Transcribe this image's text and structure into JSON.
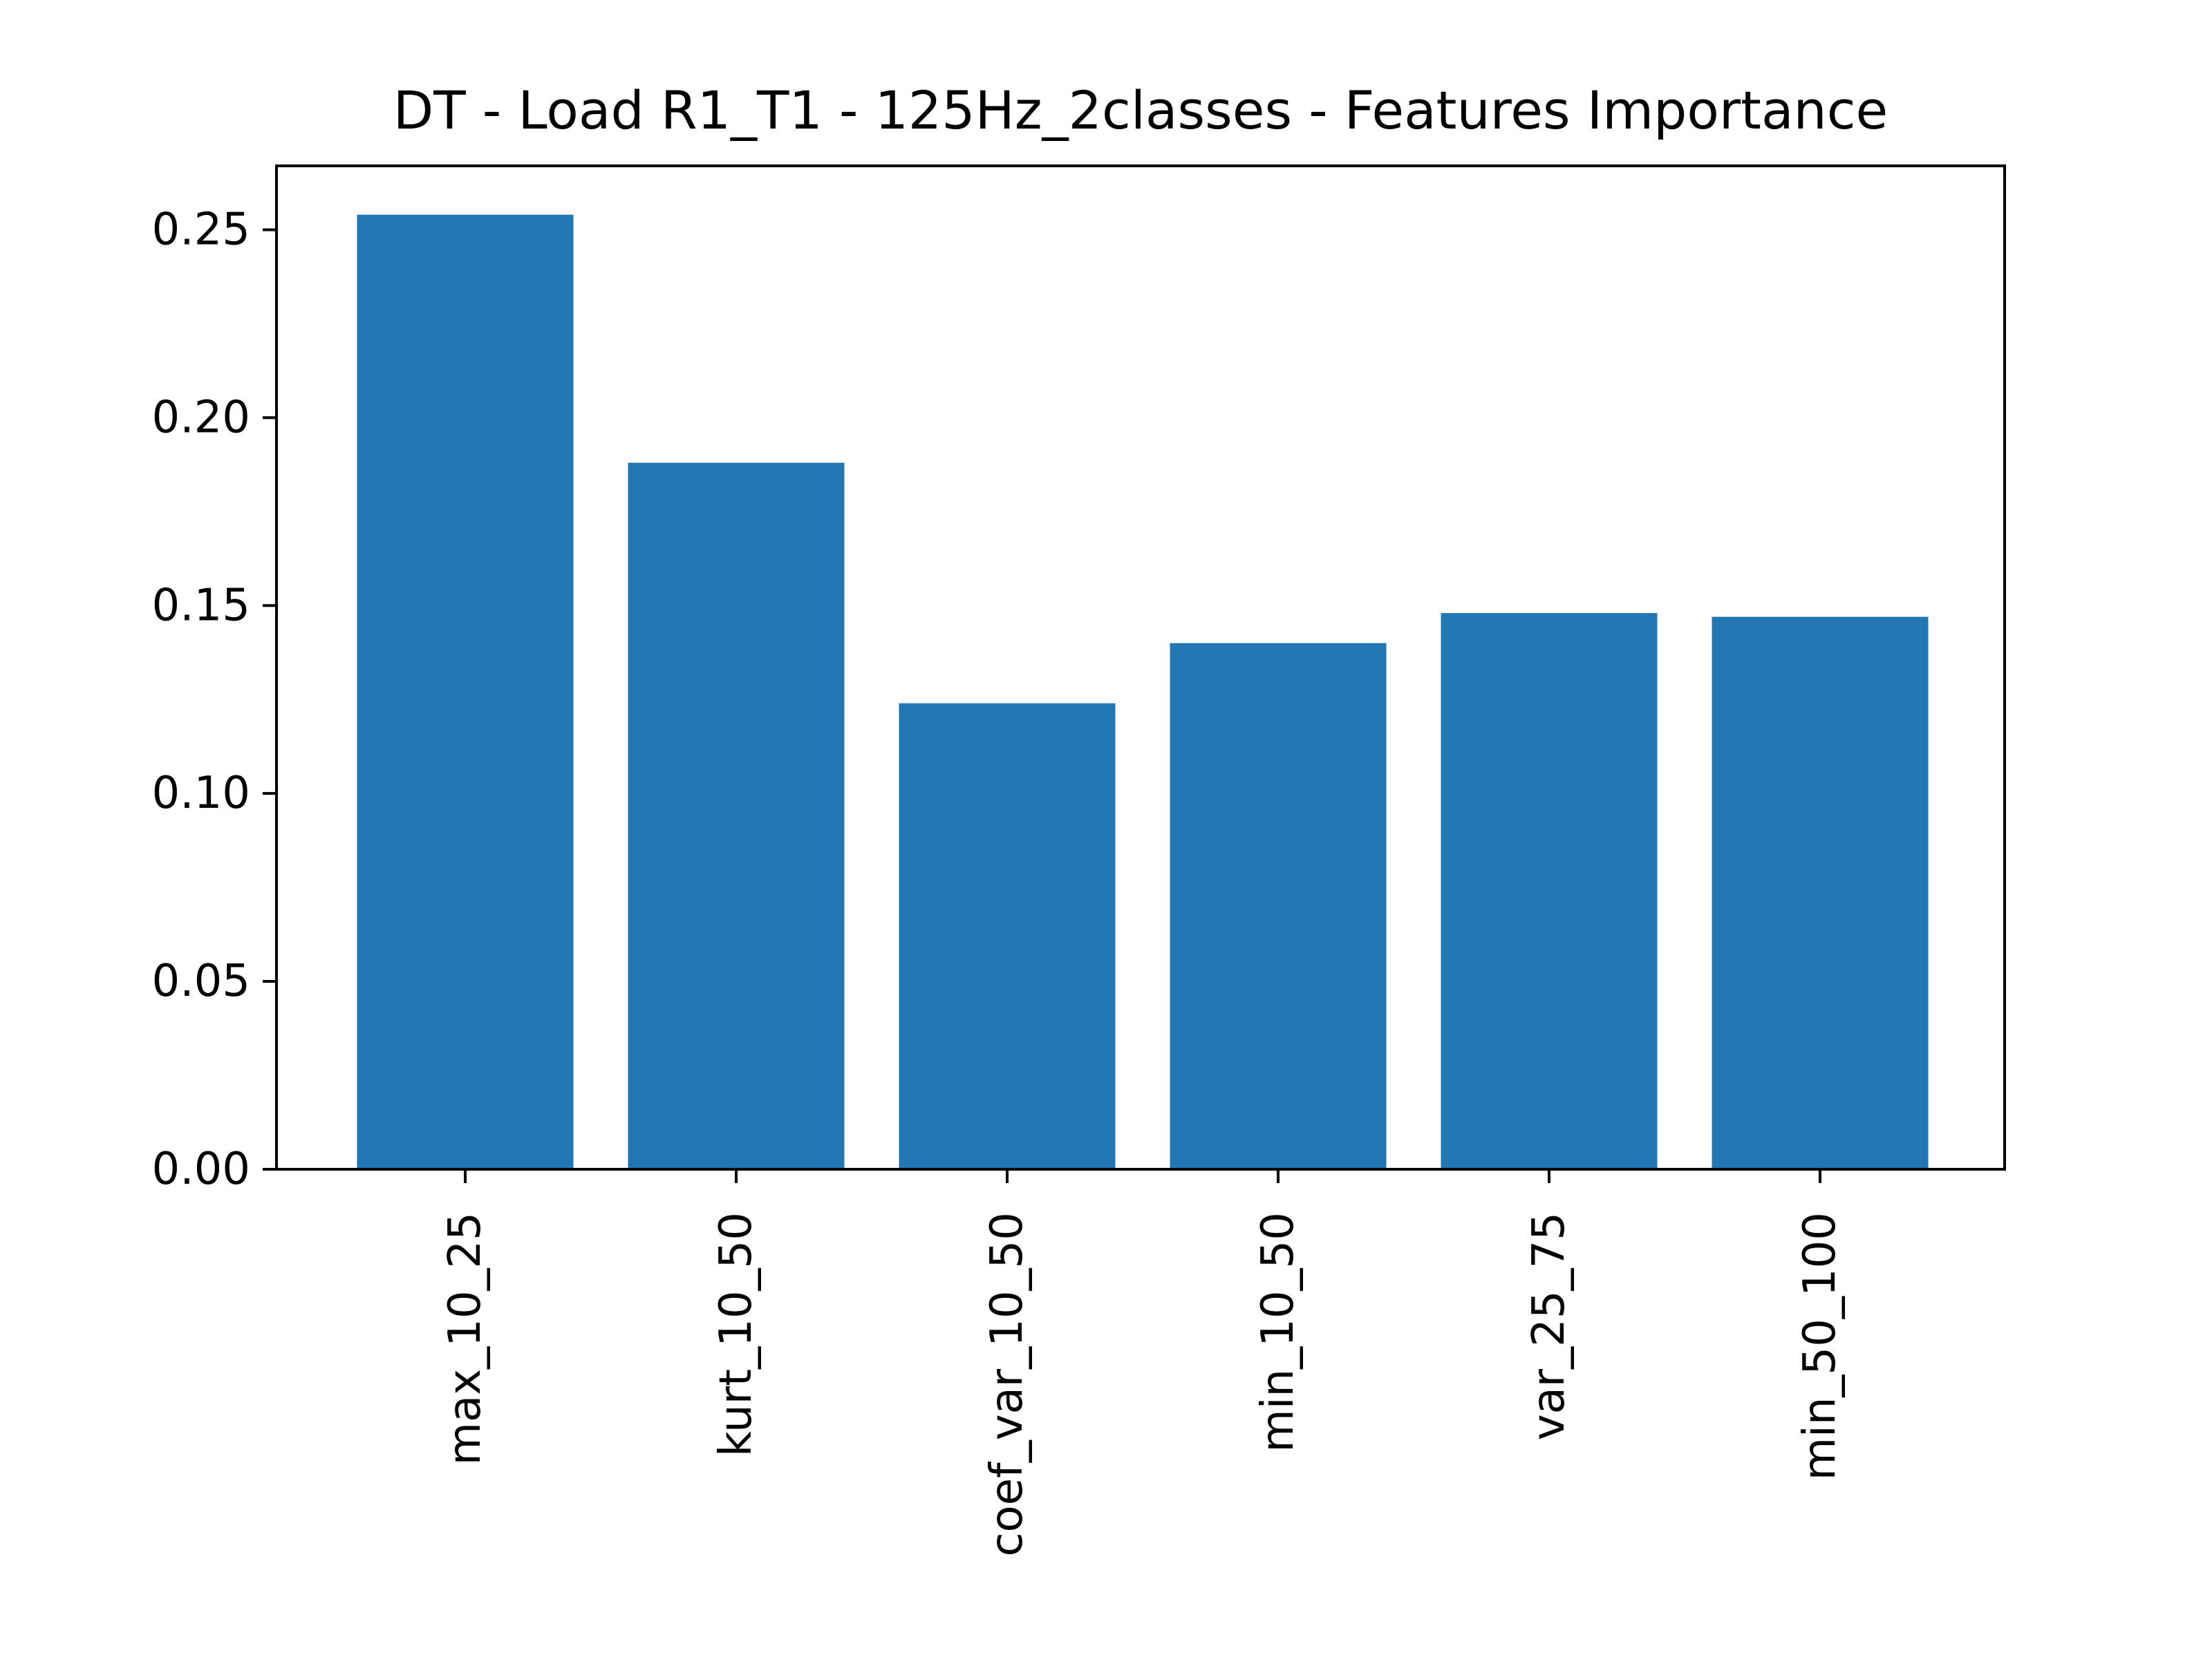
{
  "chart_data": {
    "type": "bar",
    "title": "DT - Load R1_T1 - 125Hz_2classes - Features Importance",
    "xlabel": "",
    "ylabel": "",
    "categories": [
      "max_10_25",
      "kurt_10_50",
      "coef_var_10_50",
      "min_10_50",
      "var_25_75",
      "min_50_100"
    ],
    "values": [
      0.254,
      0.188,
      0.124,
      0.14,
      0.148,
      0.147
    ],
    "ylim": [
      0,
      0.267
    ],
    "yticks": [
      0.0,
      0.05,
      0.1,
      0.15,
      0.2,
      0.25
    ],
    "ytick_labels": [
      "0.00",
      "0.05",
      "0.10",
      "0.15",
      "0.20",
      "0.25"
    ],
    "grid": false,
    "bar_color": "#2077b4"
  }
}
